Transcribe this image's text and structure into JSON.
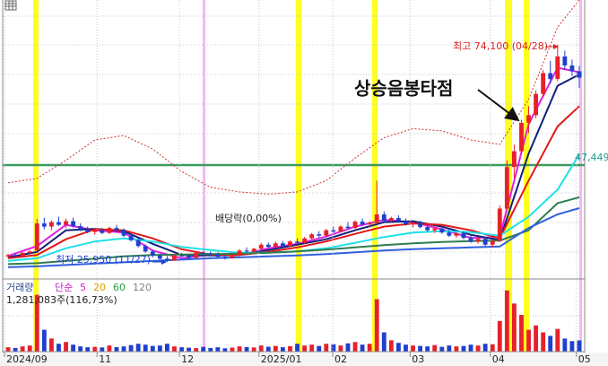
{
  "chart_data": {
    "type": "candlestick",
    "xlim": [
      -0.5,
      79.5
    ],
    "ylim": [
      22400,
      84000
    ],
    "xticks": [
      {
        "value": -0.5,
        "label": "2024/09"
      },
      {
        "value": 12.3,
        "label": "11"
      },
      {
        "value": 23.7,
        "label": "12"
      },
      {
        "value": 34.7,
        "label": "2025/01"
      },
      {
        "value": 44.9,
        "label": "02"
      },
      {
        "value": 55.6,
        "label": "03"
      },
      {
        "value": 66.7,
        "label": "04"
      },
      {
        "value": 78.6,
        "label": "05"
      }
    ],
    "up_color": "#e8202a",
    "down_color": "#1f3fd0",
    "candles": [
      [
        27200,
        27800,
        26800,
        27500
      ],
      [
        27500,
        27900,
        27000,
        27300
      ],
      [
        27300,
        28200,
        27100,
        28000
      ],
      [
        28000,
        28600,
        27600,
        28300
      ],
      [
        28500,
        35500,
        28300,
        34500
      ],
      [
        34500,
        35800,
        33200,
        33800
      ],
      [
        33800,
        35200,
        33000,
        34800
      ],
      [
        34800,
        36000,
        33900,
        34200
      ],
      [
        34200,
        35600,
        33500,
        35000
      ],
      [
        35000,
        35800,
        33600,
        33900
      ],
      [
        33900,
        34500,
        32800,
        33200
      ],
      [
        33200,
        33800,
        32300,
        32600
      ],
      [
        32600,
        33400,
        32000,
        33000
      ],
      [
        33000,
        33500,
        32100,
        32400
      ],
      [
        32400,
        33800,
        32200,
        33500
      ],
      [
        33500,
        34200,
        32800,
        33100
      ],
      [
        33100,
        33400,
        31500,
        31800
      ],
      [
        31800,
        32200,
        30500,
        30800
      ],
      [
        30800,
        31200,
        29200,
        29500
      ],
      [
        29500,
        29900,
        28000,
        28300
      ],
      [
        28300,
        28700,
        27000,
        27400
      ],
      [
        27400,
        27800,
        26400,
        26700
      ],
      [
        26700,
        27300,
        25950,
        26300
      ],
      [
        26300,
        27600,
        26200,
        27400
      ],
      [
        27400,
        28000,
        27100,
        27300
      ],
      [
        27300,
        27500,
        26700,
        26900
      ],
      [
        26900,
        28200,
        26800,
        28000
      ],
      [
        28000,
        28400,
        27600,
        27900
      ],
      [
        27900,
        28300,
        27400,
        27700
      ],
      [
        27700,
        28100,
        26900,
        27100
      ],
      [
        27100,
        27500,
        26500,
        26800
      ],
      [
        26800,
        27900,
        26700,
        27600
      ],
      [
        27600,
        28800,
        27400,
        28500
      ],
      [
        28500,
        29200,
        28100,
        28300
      ],
      [
        28300,
        29100,
        28000,
        28900
      ],
      [
        28900,
        30200,
        28700,
        29800
      ],
      [
        29800,
        30300,
        29000,
        29300
      ],
      [
        29300,
        30500,
        29100,
        30100
      ],
      [
        30100,
        30600,
        29200,
        29500
      ],
      [
        29500,
        30800,
        29300,
        30500
      ],
      [
        30500,
        31200,
        29900,
        30200
      ],
      [
        30200,
        31500,
        30000,
        31200
      ],
      [
        31200,
        32400,
        31000,
        32100
      ],
      [
        32100,
        32800,
        31400,
        31800
      ],
      [
        31800,
        33300,
        31600,
        33000
      ],
      [
        33000,
        33800,
        32400,
        32700
      ],
      [
        32700,
        34100,
        32500,
        33800
      ],
      [
        33800,
        34800,
        33200,
        33500
      ],
      [
        33500,
        35200,
        33300,
        34900
      ],
      [
        34900,
        35600,
        34000,
        34300
      ],
      [
        34300,
        35000,
        33600,
        34600
      ],
      [
        34600,
        44000,
        34400,
        36500
      ],
      [
        36500,
        37200,
        34800,
        35100
      ],
      [
        35100,
        36000,
        34600,
        35700
      ],
      [
        35700,
        36300,
        34800,
        35000
      ],
      [
        35000,
        35600,
        34000,
        34300
      ],
      [
        34300,
        34900,
        33600,
        34600
      ],
      [
        34600,
        35100,
        33400,
        33700
      ],
      [
        33700,
        34200,
        32700,
        33000
      ],
      [
        33000,
        33800,
        32400,
        33400
      ],
      [
        33400,
        33900,
        32200,
        32500
      ],
      [
        32500,
        33100,
        31500,
        31800
      ],
      [
        31800,
        32600,
        31300,
        32300
      ],
      [
        32300,
        32800,
        31000,
        31300
      ],
      [
        31300,
        31900,
        30200,
        30500
      ],
      [
        30500,
        31400,
        30000,
        31100
      ],
      [
        31100,
        31600,
        29500,
        29800
      ],
      [
        29800,
        30900,
        29200,
        30600
      ],
      [
        30600,
        38500,
        30400,
        37800
      ],
      [
        37800,
        48500,
        37500,
        47000
      ],
      [
        47000,
        52000,
        44500,
        50500
      ],
      [
        50500,
        57500,
        50000,
        56800
      ],
      [
        56800,
        60500,
        54500,
        58500
      ],
      [
        58500,
        64000,
        57800,
        63200
      ],
      [
        63200,
        68500,
        62500,
        67800
      ],
      [
        67800,
        70500,
        65500,
        66500
      ],
      [
        66500,
        74100,
        66000,
        71500
      ],
      [
        71500,
        72800,
        68500,
        69500
      ],
      [
        69500,
        70800,
        67200,
        68200
      ],
      [
        68200,
        69400,
        64500,
        66800
      ]
    ],
    "lines": [
      {
        "color": "#e020e0",
        "x": [
          0,
          4,
          8,
          12,
          16,
          20,
          24,
          28,
          32,
          36,
          40,
          44,
          48,
          52,
          56,
          60,
          64,
          68,
          72,
          76,
          79
        ],
        "values": [
          27300,
          29500,
          34200,
          33000,
          32500,
          28500,
          26800,
          27600,
          27500,
          29000,
          30000,
          31600,
          33800,
          35300,
          34800,
          33200,
          31300,
          31500,
          56500,
          69000,
          68000
        ]
      },
      {
        "color": "#10207a",
        "x": [
          0,
          4,
          8,
          12,
          16,
          20,
          24,
          28,
          32,
          36,
          40,
          44,
          48,
          52,
          56,
          60,
          64,
          68,
          72,
          76,
          79
        ],
        "values": [
          27000,
          28200,
          33000,
          33300,
          32800,
          30000,
          27500,
          27400,
          27500,
          28600,
          29800,
          31000,
          33000,
          34800,
          35000,
          33800,
          32000,
          30800,
          50000,
          65000,
          67500
        ]
      },
      {
        "color": "#e01818",
        "x": [
          0,
          4,
          8,
          12,
          16,
          20,
          24,
          28,
          32,
          36,
          40,
          44,
          48,
          52,
          56,
          60,
          64,
          68,
          72,
          76,
          79
        ],
        "values": [
          26800,
          27500,
          31000,
          33200,
          33000,
          31200,
          28800,
          27600,
          27500,
          28200,
          29200,
          30500,
          32200,
          33800,
          34500,
          34200,
          33000,
          31200,
          44000,
          56000,
          60500
        ]
      },
      {
        "color": "#20e0e8",
        "x": [
          0,
          4,
          8,
          12,
          16,
          20,
          24,
          28,
          32,
          36,
          40,
          44,
          48,
          52,
          56,
          60,
          64,
          68,
          72,
          76,
          79
        ],
        "values": [
          26200,
          26800,
          29000,
          30500,
          31200,
          30500,
          29300,
          28600,
          28000,
          28000,
          28300,
          29000,
          30200,
          31500,
          32500,
          32800,
          32600,
          31800,
          36000,
          42000,
          49800
        ]
      },
      {
        "color": "#2e7d4f",
        "x": [
          0,
          4,
          8,
          12,
          16,
          20,
          24,
          28,
          32,
          36,
          40,
          44,
          48,
          52,
          56,
          60,
          64,
          68,
          72,
          76,
          79
        ],
        "values": [
          25500,
          25700,
          26200,
          26700,
          27200,
          27500,
          27600,
          27700,
          27800,
          28000,
          28300,
          28700,
          29200,
          29700,
          30100,
          30400,
          30600,
          30700,
          33000,
          39000,
          40300
        ]
      },
      {
        "color": "#3060e0",
        "x": [
          0,
          4,
          8,
          12,
          16,
          20,
          24,
          28,
          32,
          36,
          40,
          44,
          48,
          52,
          56,
          60,
          64,
          68,
          72,
          76,
          79
        ],
        "values": [
          24800,
          25000,
          25300,
          25600,
          25900,
          26200,
          26500,
          26800,
          27000,
          27200,
          27400,
          27700,
          28100,
          28500,
          28800,
          29000,
          29200,
          29400,
          33500,
          36500,
          37900
        ]
      },
      {
        "color": "#d03030",
        "dashed": true,
        "x": [
          0,
          4,
          8,
          12,
          16,
          20,
          24,
          28,
          32,
          36,
          40,
          44,
          48,
          52,
          56,
          60,
          64,
          68,
          72,
          76,
          79
        ],
        "values": [
          43500,
          44500,
          48500,
          53000,
          54000,
          51000,
          46000,
          42500,
          41500,
          41000,
          41500,
          44000,
          49000,
          53500,
          55500,
          55000,
          53000,
          52000,
          62000,
          78000,
          84000
        ]
      }
    ],
    "level": {
      "value": 47449,
      "label": "47,449",
      "color": "#3a9a62"
    },
    "annotations": {
      "high": "최고 74,100 (04/28)",
      "low": "최저 25,950 (11/27)",
      "dividend": "배당락(0,00%)",
      "signal": "상승음봉타점"
    },
    "volume": {
      "title": "거래량",
      "ma_label": "단순",
      "ma_legend": [
        {
          "name": "5",
          "color": "#d020d0"
        },
        {
          "name": "20",
          "color": "#e0a000"
        },
        {
          "name": "60",
          "color": "#2a9a40"
        },
        {
          "name": "120",
          "color": "#808080"
        }
      ],
      "current": "1,281,083주(116,73%)",
      "ylim": [
        0,
        8000000
      ],
      "values": [
        500000,
        420000,
        600000,
        700000,
        6500000,
        2500000,
        1500000,
        900000,
        1100000,
        800000,
        600000,
        500000,
        550000,
        480000,
        700000,
        520000,
        600000,
        750000,
        900000,
        800000,
        650000,
        700000,
        900000,
        600000,
        500000,
        450000,
        400000,
        550000,
        420000,
        500000,
        380000,
        460000,
        600000,
        520000,
        480000,
        700000,
        560000,
        650000,
        500000,
        620000,
        900000,
        700000,
        800000,
        650000,
        900000,
        850000,
        700000,
        950000,
        1100000,
        800000,
        900000,
        6000000,
        2200000,
        1300000,
        1000000,
        800000,
        700000,
        650000,
        600000,
        750000,
        550000,
        700000,
        600000,
        650000,
        800000,
        700000,
        900000,
        850000,
        3500000,
        7000000,
        5500000,
        4200000,
        2500000,
        3000000,
        2200000,
        1800000,
        2600000,
        1500000,
        1200000,
        1281083
      ]
    }
  }
}
